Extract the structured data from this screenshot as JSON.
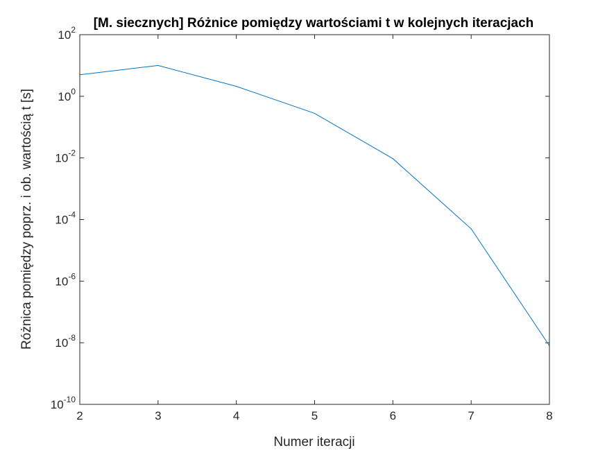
{
  "chart_data": {
    "type": "line",
    "title": "[M. siecznych] Różnice pomiędzy wartościami t w kolejnych iteracjach",
    "xlabel": "Numer iteracji",
    "ylabel": "Różnica pomiędzy poprz. i ob. wartością t [s]",
    "xlim": [
      2,
      8
    ],
    "ylim": [
      1e-10,
      100
    ],
    "yscale": "log",
    "grid": false,
    "x_ticks": [
      "2",
      "3",
      "4",
      "5",
      "6",
      "7",
      "8"
    ],
    "y_ticks": [
      {
        "base": "10",
        "exp": "-10"
      },
      {
        "base": "10",
        "exp": "-8"
      },
      {
        "base": "10",
        "exp": "-6"
      },
      {
        "base": "10",
        "exp": "-4"
      },
      {
        "base": "10",
        "exp": "-2"
      },
      {
        "base": "10",
        "exp": "0"
      },
      {
        "base": "10",
        "exp": "2"
      }
    ],
    "series": [
      {
        "color": "#0072bd",
        "x": [
          2,
          3,
          4,
          5,
          6,
          7,
          8
        ],
        "y": [
          5,
          10,
          2.1,
          0.28,
          0.0095,
          5e-05,
          8e-09
        ]
      }
    ]
  }
}
